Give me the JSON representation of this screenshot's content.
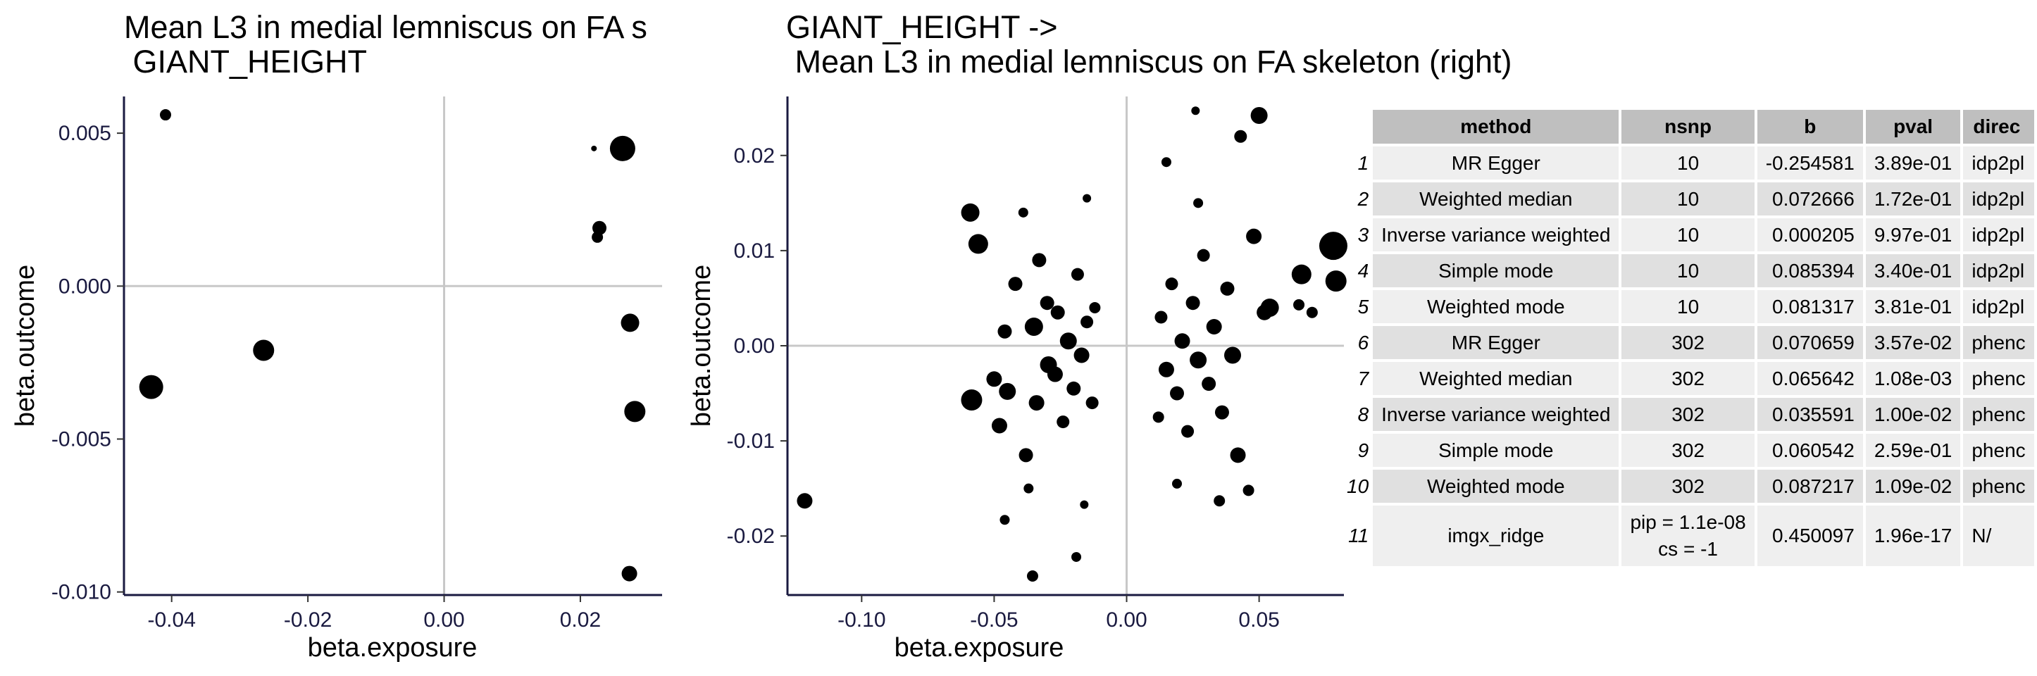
{
  "panels": [
    {
      "title_line1": "Mean L3 in medial lemniscus on FA s",
      "title_line2": " GIANT_HEIGHT",
      "xlabel": "beta.exposure",
      "ylabel": "beta.outcome"
    },
    {
      "title_line1": "GIANT_HEIGHT ->",
      "title_line2": " Mean L3 in medial lemniscus on FA skeleton (right)",
      "xlabel": "beta.exposure",
      "ylabel": "beta.outcome"
    }
  ],
  "chart_data": [
    {
      "type": "scatter",
      "title": "Mean L3 in medial lemniscus on FA s\n GIANT_HEIGHT",
      "xlabel": "beta.exposure",
      "ylabel": "beta.outcome",
      "xlim": [
        -0.047,
        0.032
      ],
      "ylim": [
        -0.0101,
        0.0062
      ],
      "xticks": [
        -0.04,
        -0.02,
        0.0,
        0.02
      ],
      "xtick_labels": [
        "-0.04",
        "-0.02",
        "0.00",
        "0.02"
      ],
      "yticks": [
        -0.01,
        -0.005,
        0.0,
        0.005
      ],
      "ytick_labels": [
        "-0.010",
        "-0.005",
        "0.000",
        "0.005"
      ],
      "reference_lines": {
        "x": 0,
        "y": 0
      },
      "grid": false,
      "points": [
        {
          "x": -0.0409,
          "y": 0.0056,
          "size": 8
        },
        {
          "x": -0.043,
          "y": -0.0033,
          "size": 17
        },
        {
          "x": -0.0265,
          "y": -0.0021,
          "size": 15
        },
        {
          "x": 0.022,
          "y": 0.0045,
          "size": 4
        },
        {
          "x": 0.0262,
          "y": 0.0045,
          "size": 18
        },
        {
          "x": 0.0228,
          "y": 0.0019,
          "size": 10
        },
        {
          "x": 0.0225,
          "y": 0.0016,
          "size": 8
        },
        {
          "x": 0.0273,
          "y": -0.0012,
          "size": 13
        },
        {
          "x": 0.028,
          "y": -0.0041,
          "size": 15
        },
        {
          "x": 0.0272,
          "y": -0.0094,
          "size": 11
        }
      ]
    },
    {
      "type": "scatter",
      "title": "GIANT_HEIGHT ->\n Mean L3 in medial lemniscus on FA skeleton (right)",
      "xlabel": "beta.exposure",
      "ylabel": "beta.outcome",
      "xlim": [
        -0.128,
        0.082
      ],
      "ylim": [
        -0.0262,
        0.0262
      ],
      "xticks": [
        -0.1,
        -0.05,
        0.0,
        0.05
      ],
      "xtick_labels": [
        "-0.10",
        "-0.05",
        "0.00",
        "0.05"
      ],
      "yticks": [
        -0.02,
        -0.01,
        0.0,
        0.01,
        0.02
      ],
      "ytick_labels": [
        "-0.02",
        "-0.01",
        "0.00",
        "0.01",
        "0.02"
      ],
      "reference_lines": {
        "x": 0,
        "y": 0
      },
      "grid": false,
      "points": [
        {
          "x": -0.1215,
          "y": -0.0163,
          "size": 11
        },
        {
          "x": -0.059,
          "y": 0.014,
          "size": 13
        },
        {
          "x": -0.056,
          "y": 0.0107,
          "size": 14
        },
        {
          "x": -0.0585,
          "y": -0.0057,
          "size": 15
        },
        {
          "x": -0.048,
          "y": -0.0084,
          "size": 11
        },
        {
          "x": -0.05,
          "y": -0.0035,
          "size": 11
        },
        {
          "x": -0.045,
          "y": -0.0048,
          "size": 12
        },
        {
          "x": -0.046,
          "y": 0.0015,
          "size": 10
        },
        {
          "x": -0.042,
          "y": 0.0065,
          "size": 10
        },
        {
          "x": -0.038,
          "y": -0.0115,
          "size": 10
        },
        {
          "x": -0.035,
          "y": 0.002,
          "size": 13
        },
        {
          "x": -0.034,
          "y": -0.006,
          "size": 11
        },
        {
          "x": -0.033,
          "y": 0.009,
          "size": 10
        },
        {
          "x": -0.03,
          "y": 0.0045,
          "size": 10
        },
        {
          "x": -0.0295,
          "y": -0.002,
          "size": 12
        },
        {
          "x": -0.027,
          "y": -0.003,
          "size": 11
        },
        {
          "x": -0.026,
          "y": 0.0035,
          "size": 10
        },
        {
          "x": -0.024,
          "y": -0.008,
          "size": 9
        },
        {
          "x": -0.022,
          "y": 0.0005,
          "size": 12
        },
        {
          "x": -0.02,
          "y": -0.0045,
          "size": 10
        },
        {
          "x": -0.0185,
          "y": 0.0075,
          "size": 9
        },
        {
          "x": -0.017,
          "y": -0.001,
          "size": 11
        },
        {
          "x": -0.015,
          "y": 0.0025,
          "size": 9
        },
        {
          "x": -0.013,
          "y": -0.006,
          "size": 9
        },
        {
          "x": -0.012,
          "y": 0.004,
          "size": 8
        },
        {
          "x": -0.046,
          "y": -0.0183,
          "size": 7
        },
        {
          "x": -0.0355,
          "y": -0.0242,
          "size": 8
        },
        {
          "x": -0.019,
          "y": -0.0222,
          "size": 7
        },
        {
          "x": -0.016,
          "y": -0.0167,
          "size": 6
        },
        {
          "x": -0.015,
          "y": 0.0155,
          "size": 6
        },
        {
          "x": -0.037,
          "y": -0.015,
          "size": 7
        },
        {
          "x": -0.039,
          "y": 0.014,
          "size": 7
        },
        {
          "x": 0.015,
          "y": 0.0193,
          "size": 7
        },
        {
          "x": 0.026,
          "y": 0.0247,
          "size": 6
        },
        {
          "x": 0.05,
          "y": 0.0242,
          "size": 12
        },
        {
          "x": 0.043,
          "y": 0.022,
          "size": 9
        },
        {
          "x": 0.048,
          "y": 0.0115,
          "size": 11
        },
        {
          "x": 0.054,
          "y": 0.004,
          "size": 13
        },
        {
          "x": 0.052,
          "y": 0.0035,
          "size": 11
        },
        {
          "x": 0.066,
          "y": 0.0075,
          "size": 14
        },
        {
          "x": 0.065,
          "y": 0.0043,
          "size": 8
        },
        {
          "x": 0.07,
          "y": 0.0035,
          "size": 8
        },
        {
          "x": 0.078,
          "y": 0.0105,
          "size": 20
        },
        {
          "x": 0.079,
          "y": 0.0068,
          "size": 15
        },
        {
          "x": 0.042,
          "y": -0.0115,
          "size": 11
        },
        {
          "x": 0.046,
          "y": -0.0152,
          "size": 8
        },
        {
          "x": 0.035,
          "y": -0.0163,
          "size": 8
        },
        {
          "x": 0.04,
          "y": -0.001,
          "size": 12
        },
        {
          "x": 0.038,
          "y": 0.006,
          "size": 10
        },
        {
          "x": 0.036,
          "y": -0.007,
          "size": 10
        },
        {
          "x": 0.033,
          "y": 0.002,
          "size": 11
        },
        {
          "x": 0.031,
          "y": -0.004,
          "size": 10
        },
        {
          "x": 0.029,
          "y": 0.0095,
          "size": 9
        },
        {
          "x": 0.027,
          "y": -0.0015,
          "size": 12
        },
        {
          "x": 0.025,
          "y": 0.0045,
          "size": 10
        },
        {
          "x": 0.023,
          "y": -0.009,
          "size": 9
        },
        {
          "x": 0.021,
          "y": 0.0005,
          "size": 11
        },
        {
          "x": 0.019,
          "y": -0.005,
          "size": 10
        },
        {
          "x": 0.017,
          "y": 0.0065,
          "size": 9
        },
        {
          "x": 0.015,
          "y": -0.0025,
          "size": 11
        },
        {
          "x": 0.013,
          "y": 0.003,
          "size": 9
        },
        {
          "x": 0.012,
          "y": -0.0075,
          "size": 8
        },
        {
          "x": 0.019,
          "y": -0.0145,
          "size": 7
        },
        {
          "x": 0.027,
          "y": 0.015,
          "size": 7
        }
      ]
    },
    {
      "type": "table",
      "columns": [
        "method",
        "nsnp",
        "b",
        "pval",
        "direc"
      ],
      "rows": [
        {
          "n": "1",
          "method": "MR Egger",
          "nsnp": "10",
          "b": "-0.254581",
          "pval": "3.89e-01",
          "direc": "idp2pl"
        },
        {
          "n": "2",
          "method": "Weighted median",
          "nsnp": "10",
          "b": "0.072666",
          "pval": "1.72e-01",
          "direc": "idp2pl"
        },
        {
          "n": "3",
          "method": "Inverse variance weighted",
          "nsnp": "10",
          "b": "0.000205",
          "pval": "9.97e-01",
          "direc": "idp2pl"
        },
        {
          "n": "4",
          "method": "Simple mode",
          "nsnp": "10",
          "b": "0.085394",
          "pval": "3.40e-01",
          "direc": "idp2pl"
        },
        {
          "n": "5",
          "method": "Weighted mode",
          "nsnp": "10",
          "b": "0.081317",
          "pval": "3.81e-01",
          "direc": "idp2pl"
        },
        {
          "n": "6",
          "method": "MR Egger",
          "nsnp": "302",
          "b": "0.070659",
          "pval": "3.57e-02",
          "direc": "phenc"
        },
        {
          "n": "7",
          "method": "Weighted median",
          "nsnp": "302",
          "b": "0.065642",
          "pval": "1.08e-03",
          "direc": "phenc"
        },
        {
          "n": "8",
          "method": "Inverse variance weighted",
          "nsnp": "302",
          "b": "0.035591",
          "pval": "1.00e-02",
          "direc": "phenc"
        },
        {
          "n": "9",
          "method": "Simple mode",
          "nsnp": "302",
          "b": "0.060542",
          "pval": "2.59e-01",
          "direc": "phenc"
        },
        {
          "n": "10",
          "method": "Weighted mode",
          "nsnp": "302",
          "b": "0.087217",
          "pval": "1.09e-02",
          "direc": "phenc"
        },
        {
          "n": "11",
          "method": "imgx_ridge",
          "nsnp": "pip = 1.1e-08\ncs = -1",
          "b": "0.450097",
          "pval": "1.96e-17",
          "direc": "N/"
        }
      ]
    }
  ]
}
